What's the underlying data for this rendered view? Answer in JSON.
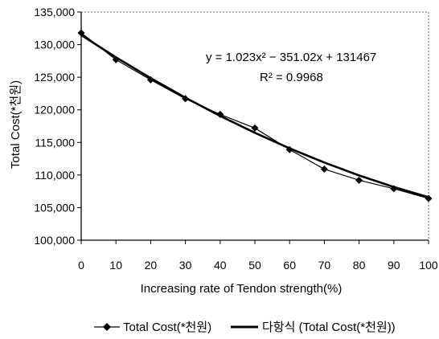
{
  "chart_data": {
    "type": "line",
    "x": [
      0,
      10,
      20,
      30,
      40,
      50,
      60,
      70,
      80,
      90,
      100
    ],
    "series": [
      {
        "name": "Total Cost(*천원)",
        "values": [
          131800,
          127700,
          124600,
          121700,
          119300,
          117200,
          113900,
          110900,
          109200,
          107900,
          106400
        ],
        "marker": "diamond",
        "color": "#000000"
      },
      {
        "name": "다항식 (Total Cost(*천원))",
        "values": [
          131467,
          128060,
          124858,
          121860,
          119066,
          116477,
          114093,
          111913,
          109938,
          108167,
          106600
        ],
        "marker": "none",
        "color": "#000000"
      }
    ],
    "xlabel": "Increasing rate of Tendon strength(%)",
    "ylabel": "Total Cost(*천원)",
    "ylim": [
      100000,
      135000
    ],
    "xlim": [
      0,
      100
    ],
    "x_ticks": [
      "0",
      "10",
      "20",
      "30",
      "40",
      "50",
      "60",
      "70",
      "80",
      "90",
      "100"
    ],
    "y_ticks": [
      "100,000",
      "105,000",
      "110,000",
      "115,000",
      "120,000",
      "125,000",
      "130,000",
      "135,000"
    ],
    "annotations": {
      "equation": "y = 1.023x² − 351.02x + 131467",
      "r2": "R² = 0.9968"
    },
    "legend": {
      "placement": "bottom",
      "items": [
        "Total Cost(*천원)",
        "다항식 (Total Cost(*천원))"
      ]
    },
    "grid": false
  }
}
